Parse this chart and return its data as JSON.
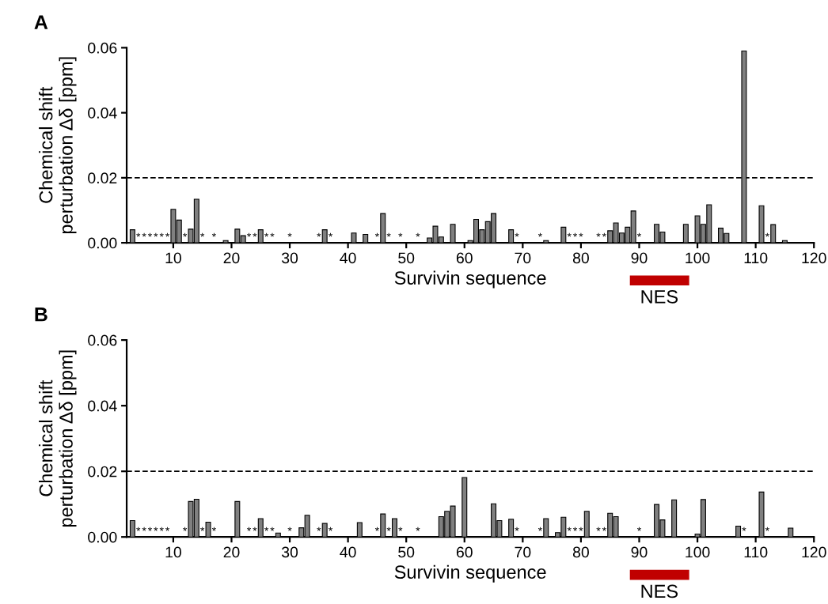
{
  "chart_data": [
    {
      "type": "bar",
      "title": "A",
      "xlabel": "Survivin sequence",
      "ylabel": "Chemical shift\nperturbation Δδ [ppm]",
      "x": [
        3,
        4,
        5,
        6,
        7,
        8,
        9,
        10,
        11,
        12,
        13,
        14,
        15,
        17,
        19,
        21,
        22,
        23,
        24,
        25,
        26,
        27,
        30,
        35,
        36,
        37,
        41,
        43,
        45,
        46,
        47,
        49,
        52,
        54,
        55,
        56,
        58,
        61,
        62,
        63,
        64,
        65,
        68,
        69,
        73,
        74,
        77,
        78,
        79,
        80,
        83,
        84,
        85,
        86,
        87,
        88,
        89,
        90,
        93,
        94,
        98,
        100,
        101,
        102,
        104,
        105,
        108,
        111,
        112,
        113,
        115
      ],
      "values": [
        0.004,
        null,
        null,
        null,
        null,
        null,
        null,
        0.0103,
        0.007,
        null,
        0.0042,
        0.0134,
        null,
        null,
        0.0007,
        0.0042,
        0.0022,
        null,
        null,
        0.004,
        null,
        null,
        null,
        null,
        0.004,
        null,
        0.003,
        0.0026,
        null,
        0.009,
        null,
        null,
        null,
        0.0015,
        0.0051,
        0.0018,
        0.0057,
        0.0007,
        0.0072,
        0.004,
        0.0065,
        0.009,
        0.004,
        null,
        null,
        0.0007,
        0.0048,
        null,
        null,
        null,
        null,
        null,
        0.0037,
        0.0061,
        0.003,
        0.0048,
        0.0098,
        null,
        0.0057,
        0.0033,
        0.0057,
        0.0083,
        0.0057,
        0.0117,
        0.0045,
        0.0029,
        0.059,
        0.0114,
        null,
        0.0056,
        0.0007
      ],
      "value_labels": [
        null,
        "*",
        "*",
        "*",
        "*",
        "*",
        "*",
        null,
        null,
        "*",
        null,
        null,
        "*",
        "*",
        null,
        null,
        null,
        "*",
        "*",
        null,
        "*",
        "*",
        "*",
        "*",
        null,
        "*",
        null,
        null,
        "*",
        null,
        "*",
        "*",
        "*",
        null,
        null,
        null,
        null,
        null,
        null,
        null,
        null,
        null,
        null,
        "*",
        "*",
        null,
        null,
        "*",
        "*",
        "*",
        "*",
        "*",
        null,
        null,
        null,
        null,
        null,
        "*",
        null,
        null,
        null,
        null,
        null,
        null,
        null,
        null,
        null,
        null,
        "*",
        null,
        null
      ],
      "color": "#808080",
      "xlim": [
        2,
        120
      ],
      "xticks": [
        10,
        20,
        30,
        40,
        50,
        60,
        70,
        80,
        90,
        100,
        110,
        120
      ],
      "ylim": [
        0,
        0.06
      ],
      "yticks": [
        {
          "value": 0,
          "label": "0.00"
        },
        {
          "value": 0.02,
          "label": "0.02"
        },
        {
          "value": 0.04,
          "label": "0.04"
        },
        {
          "value": 0.06,
          "label": "0.06"
        }
      ],
      "ref_lines": [
        {
          "axis": "y",
          "value": 0.02,
          "line_style": "dashed",
          "color": "#000000"
        }
      ],
      "annotations": [
        "NES"
      ]
    },
    {
      "type": "bar",
      "title": "B",
      "xlabel": "Survivin sequence",
      "ylabel": "Chemical shift\nperturbation Δδ [ppm]",
      "x": [
        3,
        4,
        5,
        6,
        7,
        8,
        9,
        12,
        13,
        14,
        15,
        16,
        17,
        21,
        23,
        24,
        25,
        26,
        27,
        28,
        30,
        32,
        33,
        35,
        36,
        37,
        42,
        45,
        46,
        47,
        48,
        49,
        52,
        56,
        57,
        58,
        60,
        65,
        66,
        68,
        69,
        73,
        74,
        76,
        77,
        78,
        79,
        80,
        81,
        83,
        84,
        85,
        86,
        90,
        93,
        94,
        96,
        100,
        101,
        107,
        108,
        111,
        112,
        116
      ],
      "values": [
        0.005,
        null,
        null,
        null,
        null,
        null,
        null,
        null,
        0.0108,
        0.0115,
        null,
        0.0045,
        null,
        0.0108,
        null,
        null,
        0.0056,
        null,
        null,
        0.0012,
        null,
        0.0028,
        0.0066,
        null,
        0.0041,
        null,
        0.0044,
        null,
        0.007,
        null,
        0.0056,
        null,
        null,
        0.0062,
        0.0078,
        0.0094,
        0.0181,
        0.0101,
        0.005,
        0.0054,
        null,
        null,
        0.0056,
        0.0013,
        0.006,
        null,
        null,
        null,
        0.0078,
        null,
        null,
        0.0072,
        0.0062,
        null,
        0.0099,
        0.0052,
        0.0113,
        0.0009,
        0.0114,
        0.0033,
        null,
        0.0137,
        null,
        0.0027
      ],
      "value_labels": [
        null,
        "*",
        "*",
        "*",
        "*",
        "*",
        "*",
        "*",
        null,
        null,
        "*",
        null,
        "*",
        null,
        "*",
        "*",
        null,
        "*",
        "*",
        null,
        "*",
        null,
        null,
        "*",
        null,
        "*",
        null,
        "*",
        null,
        "*",
        null,
        "*",
        "*",
        null,
        null,
        null,
        null,
        null,
        null,
        null,
        "*",
        "*",
        null,
        null,
        null,
        "*",
        "*",
        "*",
        null,
        "*",
        "*",
        null,
        null,
        "*",
        null,
        null,
        null,
        null,
        null,
        null,
        "*",
        null,
        "*",
        null
      ],
      "color": "#808080",
      "xlim": [
        2,
        120
      ],
      "xticks": [
        10,
        20,
        30,
        40,
        50,
        60,
        70,
        80,
        90,
        100,
        110,
        120
      ],
      "ylim": [
        0,
        0.06
      ],
      "yticks": [
        {
          "value": 0,
          "label": "0.00"
        },
        {
          "value": 0.02,
          "label": "0.02"
        },
        {
          "value": 0.04,
          "label": "0.04"
        },
        {
          "value": 0.06,
          "label": "0.06"
        }
      ],
      "ref_lines": [
        {
          "axis": "y",
          "value": 0.02,
          "line_style": "dashed",
          "color": "#000000"
        }
      ],
      "annotations": [
        "NES"
      ]
    }
  ]
}
